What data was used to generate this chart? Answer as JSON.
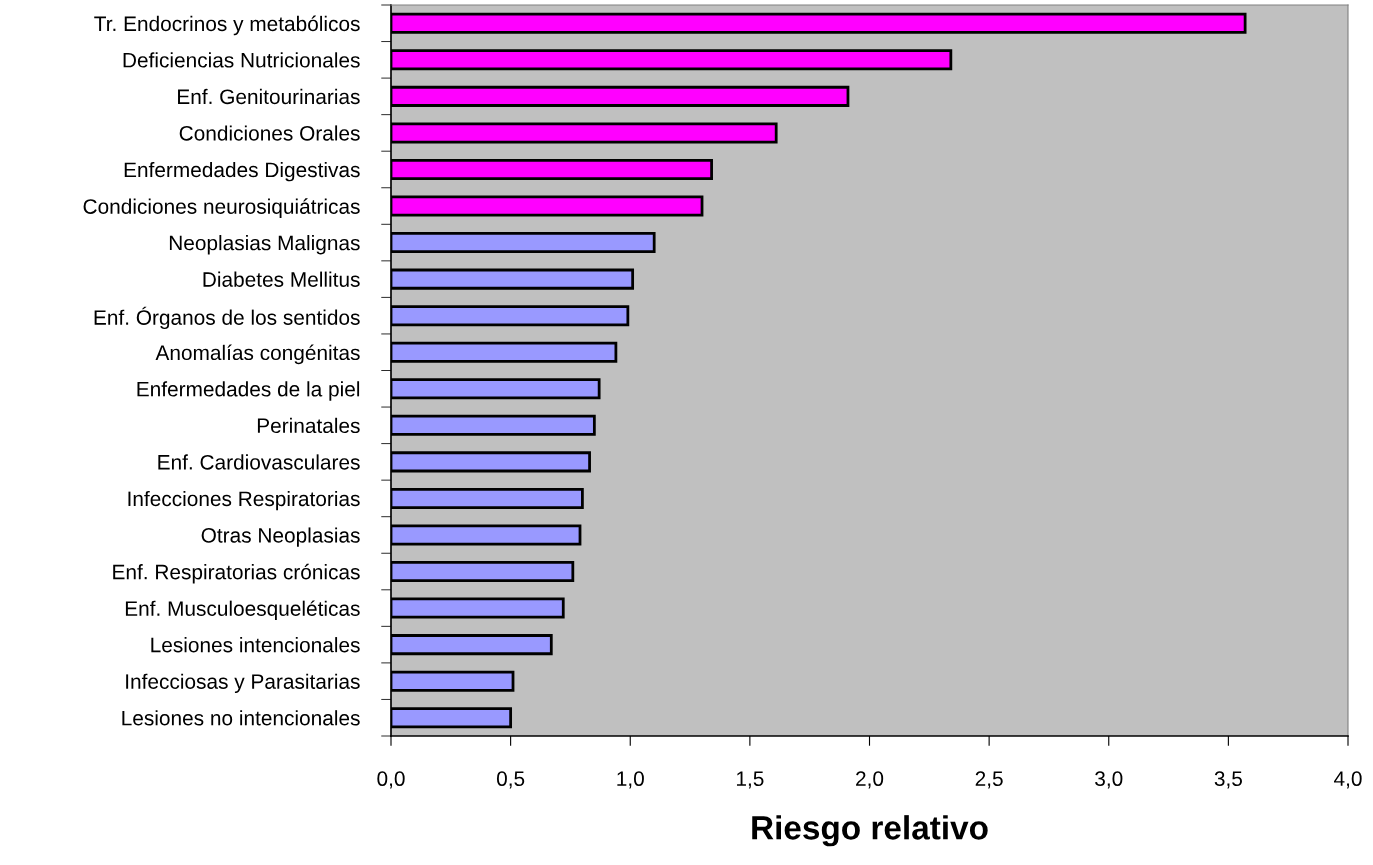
{
  "chart_data": {
    "type": "bar",
    "orientation": "horizontal",
    "xlabel": "Riesgo relativo",
    "categories": [
      "Tr. Endocrinos y metabólicos",
      "Deficiencias Nutricionales",
      "Enf. Genitourinarias",
      "Condiciones Orales",
      "Enfermedades Digestivas",
      "Condiciones neurosiquiátricas",
      "Neoplasias Malignas",
      "Diabetes Mellitus",
      "Enf. Órganos de los sentidos",
      "Anomalías congénitas",
      "Enfermedades de la piel",
      "Perinatales",
      "Enf. Cardiovasculares",
      "Infecciones Respiratorias",
      "Otras Neoplasias",
      "Enf. Respiratorias crónicas",
      "Enf. Musculoesqueléticas",
      "Lesiones intencionales",
      "Infecciosas y Parasitarias",
      "Lesiones no intencionales"
    ],
    "values": [
      3.57,
      2.34,
      1.91,
      1.61,
      1.34,
      1.3,
      1.1,
      1.01,
      0.99,
      0.94,
      0.87,
      0.85,
      0.83,
      0.8,
      0.79,
      0.76,
      0.72,
      0.67,
      0.51,
      0.5
    ],
    "colors": [
      "#ff00ff",
      "#ff00ff",
      "#ff00ff",
      "#ff00ff",
      "#ff00ff",
      "#ff00ff",
      "#9999ff",
      "#9999ff",
      "#9999ff",
      "#9999ff",
      "#9999ff",
      "#9999ff",
      "#9999ff",
      "#9999ff",
      "#9999ff",
      "#9999ff",
      "#9999ff",
      "#9999ff",
      "#9999ff",
      "#9999ff"
    ],
    "xlim": [
      0,
      4
    ],
    "xticks": [
      {
        "value": 0,
        "label": "0,0"
      },
      {
        "value": 0.5,
        "label": "0,5"
      },
      {
        "value": 1,
        "label": "1,0"
      },
      {
        "value": 1.5,
        "label": "1,5"
      },
      {
        "value": 2,
        "label": "2,0"
      },
      {
        "value": 2.5,
        "label": "2,5"
      },
      {
        "value": 3,
        "label": "3,0"
      },
      {
        "value": 3.5,
        "label": "3,5"
      },
      {
        "value": 4,
        "label": "4,0"
      }
    ],
    "grid": false,
    "legend": false
  }
}
